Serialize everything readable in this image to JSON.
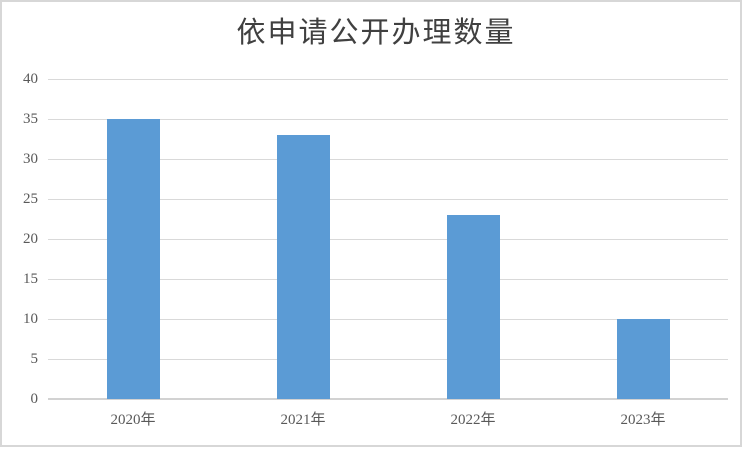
{
  "chart_data": {
    "type": "bar",
    "title": "依申请公开办理数量",
    "categories": [
      "2020年",
      "2021年",
      "2022年",
      "2023年"
    ],
    "values": [
      35,
      33,
      23,
      10
    ],
    "xlabel": "",
    "ylabel": "",
    "ylim": [
      0,
      40
    ],
    "yticks": [
      0,
      5,
      10,
      15,
      20,
      25,
      30,
      35,
      40
    ],
    "grid": true,
    "legend": false
  },
  "colors": {
    "bar": "#5B9BD5",
    "gridline": "#D9D9D9",
    "axis_line": "#D2D2D2",
    "tick_text": "#595959",
    "title_text": "#404040",
    "frame_border": "#D7D7D7",
    "background": "#FFFFFF"
  }
}
